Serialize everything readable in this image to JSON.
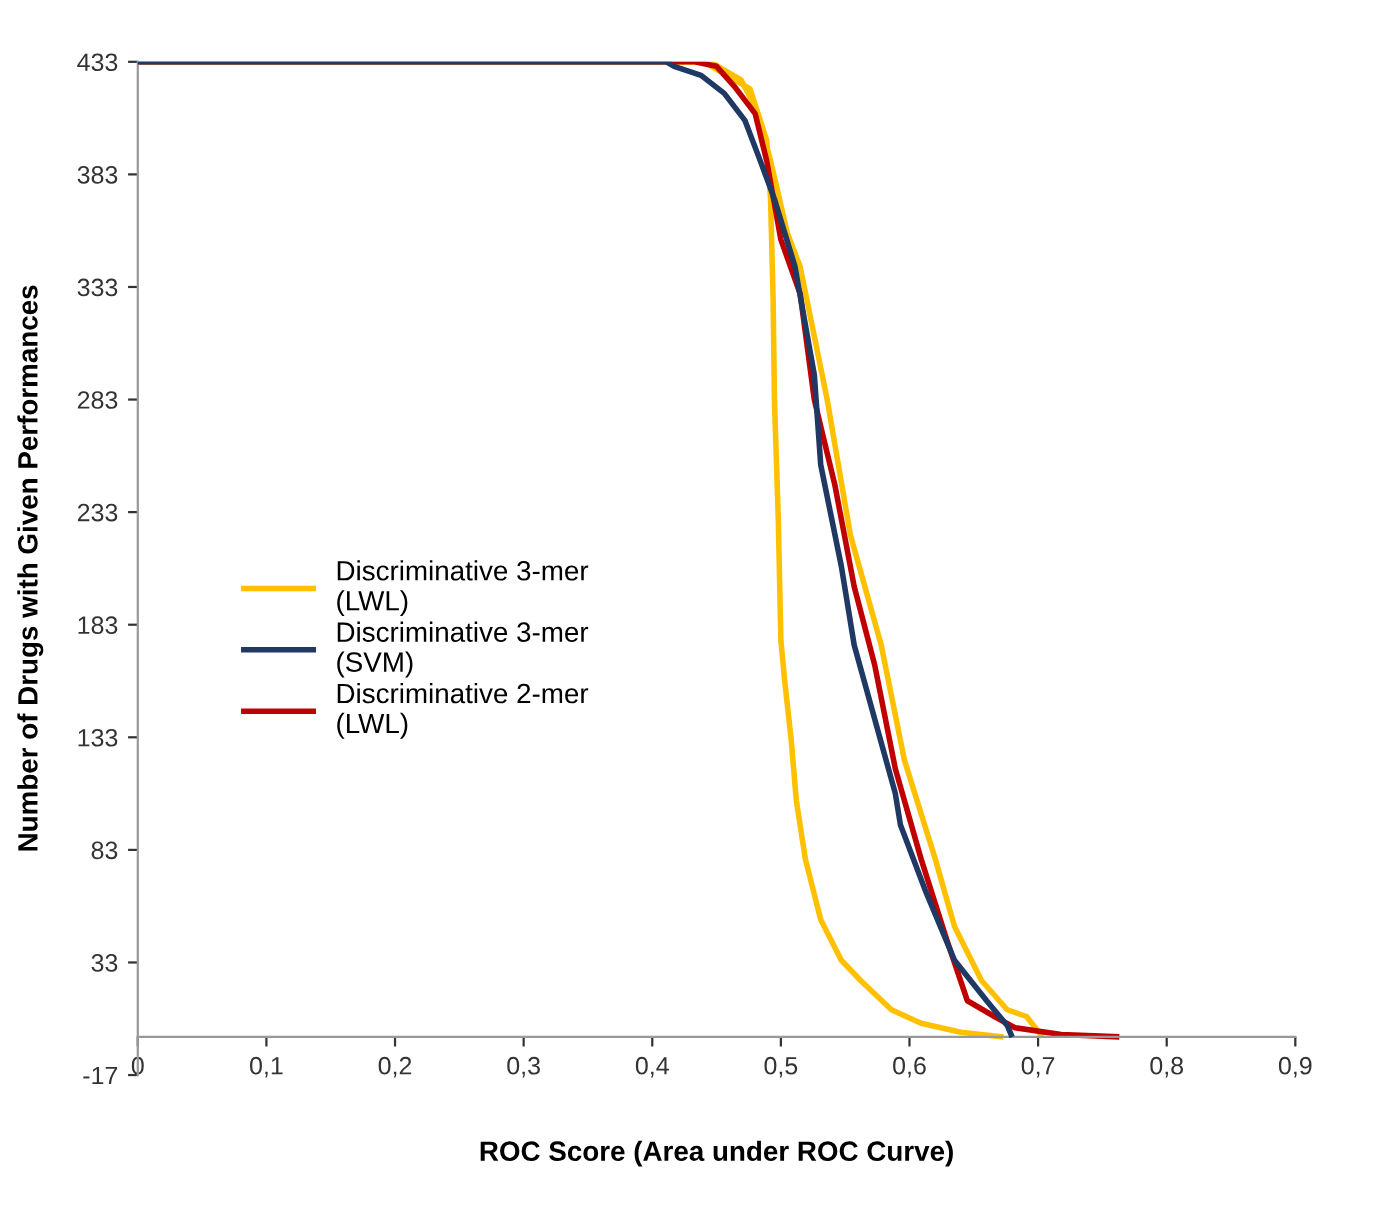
{
  "chart_data": {
    "type": "line",
    "xlabel": "ROC Score (Area under ROC Curve)",
    "ylabel": "Number of Drugs with Given Performances",
    "xlim": [
      0,
      0.9
    ],
    "ylim": [
      -17,
      433
    ],
    "xticks": [
      0,
      {
        "value": 0.1,
        "label": "0,1"
      },
      {
        "value": 0.2,
        "label": "0,2"
      },
      {
        "value": 0.3,
        "label": "0,3"
      },
      {
        "value": 0.4,
        "label": "0,4"
      },
      {
        "value": 0.5,
        "label": "0,5"
      },
      {
        "value": 0.6,
        "label": "0,6"
      },
      {
        "value": 0.7,
        "label": "0,7"
      },
      {
        "value": 0.8,
        "label": "0,8"
      },
      {
        "value": 0.9,
        "label": "0,9"
      }
    ],
    "yticks": [
      -17,
      33,
      83,
      133,
      183,
      233,
      283,
      333,
      383,
      433
    ],
    "grid": false,
    "legend": "left",
    "marker": "none",
    "line_style": "solid",
    "series": [
      {
        "name": "Discriminative 3-mer (LWL)",
        "color": "#ffc000",
        "x": [
          0,
          0.44,
          0.476,
          0.489,
          0.492,
          0.494,
          0.495,
          0.498,
          0.5,
          0.503,
          0.508,
          0.512,
          0.519,
          0.531,
          0.547,
          0.562,
          0.586,
          0.609,
          0.64,
          0.671
        ],
        "values": [
          433,
          433,
          421,
          398,
          372,
          327,
          283,
          230,
          176,
          158,
          132,
          105,
          79,
          52,
          34,
          25,
          12,
          6,
          2,
          0
        ]
      },
      {
        "color": "#ffc000",
        "x": [
          0,
          0.445,
          0.469,
          0.481,
          0.492,
          0.505,
          0.515,
          0.536,
          0.554,
          0.578,
          0.596,
          0.62,
          0.635,
          0.656,
          0.676,
          0.691,
          0.702
        ],
        "values": [
          433,
          433,
          425,
          412,
          389,
          357,
          342,
          283,
          223,
          174,
          123,
          79,
          49,
          25,
          12,
          9,
          1
        ]
      },
      {
        "name": "Discriminative 3-mer (SVM)",
        "color": "#1f3864",
        "x": [
          0,
          0.411,
          0.417,
          0.438,
          0.456,
          0.472,
          0.484,
          0.495,
          0.511,
          0.526,
          0.531,
          0.547,
          0.557,
          0.573,
          0.589,
          0.593,
          0.613,
          0.635,
          0.66,
          0.676,
          0.679
        ],
        "values": [
          433,
          433,
          431,
          427,
          419,
          407,
          389,
          372,
          342,
          294,
          254,
          209,
          174,
          141,
          108,
          94,
          64,
          34,
          16,
          5,
          1
        ]
      },
      {
        "name": "Discriminative 2-mer (LWL)",
        "color": "#c00000",
        "x": [
          0,
          0.433,
          0.45,
          0.464,
          0.48,
          0.489,
          0.5,
          0.515,
          0.526,
          0.542,
          0.557,
          0.573,
          0.589,
          0.609,
          0.629,
          0.645,
          0.666,
          0.682,
          0.718,
          0.761
        ],
        "values": [
          433,
          433,
          431,
          422,
          410,
          389,
          354,
          330,
          283,
          245,
          200,
          165,
          119,
          79,
          43,
          16,
          9,
          4,
          1,
          0
        ]
      }
    ]
  }
}
